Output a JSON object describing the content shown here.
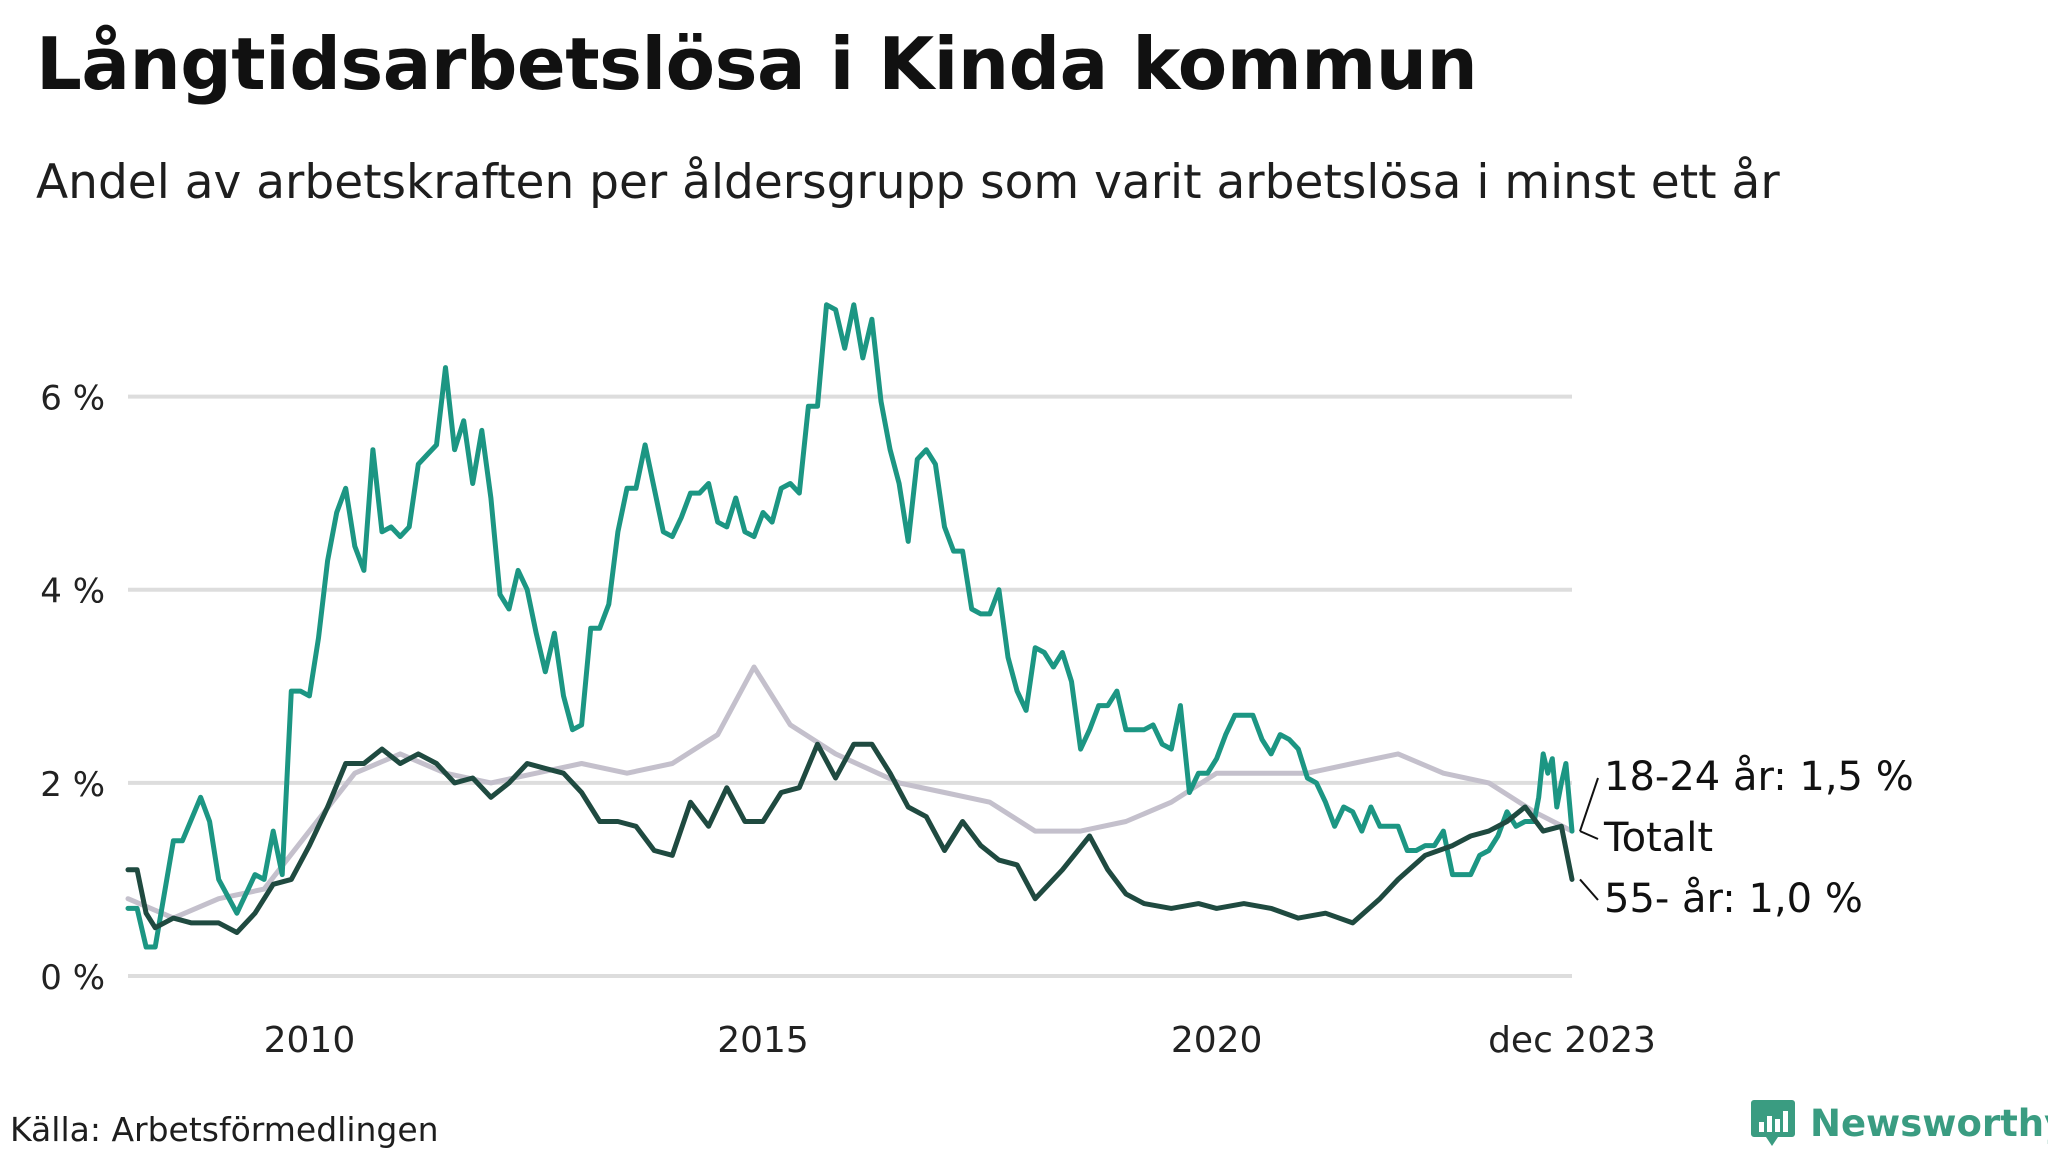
{
  "title": "Långtidsarbetslösa i Kinda kommun",
  "subtitle": "Andel av arbetskraften per åldersgrupp som varit arbetslösa i minst ett år",
  "source": "Källa: Arbetsförmedlingen",
  "brand": "Newsworthy",
  "colors": {
    "youth": "#1c9683",
    "total": "#c4c0cc",
    "senior": "#1f4a40",
    "grid": "#dddddd",
    "brand": "#3a9c81"
  },
  "chart_data": {
    "type": "line",
    "title": "Långtidsarbetslösa i Kinda kommun",
    "xlabel": "",
    "ylabel": "",
    "ylim": [
      0,
      7
    ],
    "xlim": [
      2008.0,
      2023.917
    ],
    "y_ticks": [
      {
        "value": 0,
        "label": "0 %"
      },
      {
        "value": 2,
        "label": "2 %"
      },
      {
        "value": 4,
        "label": "4 %"
      },
      {
        "value": 6,
        "label": "6 %"
      }
    ],
    "x_ticks": [
      {
        "value": 2010,
        "label": "2010"
      },
      {
        "value": 2015,
        "label": "2015"
      },
      {
        "value": 2020,
        "label": "2020"
      },
      {
        "value": 2023.917,
        "label": "dec 2023"
      }
    ],
    "grid": true,
    "series": [
      {
        "key": "total",
        "name": "Totalt",
        "label": "Totalt",
        "points": [
          [
            2008.0,
            0.8
          ],
          [
            2008.5,
            0.6
          ],
          [
            2009.0,
            0.8
          ],
          [
            2009.5,
            0.9
          ],
          [
            2010.0,
            1.5
          ],
          [
            2010.5,
            2.1
          ],
          [
            2011.0,
            2.3
          ],
          [
            2011.5,
            2.1
          ],
          [
            2012.0,
            2.0
          ],
          [
            2012.5,
            2.1
          ],
          [
            2013.0,
            2.2
          ],
          [
            2013.5,
            2.1
          ],
          [
            2014.0,
            2.2
          ],
          [
            2014.5,
            2.5
          ],
          [
            2014.9,
            3.2
          ],
          [
            2015.3,
            2.6
          ],
          [
            2015.8,
            2.3
          ],
          [
            2016.5,
            2.0
          ],
          [
            2017.0,
            1.9
          ],
          [
            2017.5,
            1.8
          ],
          [
            2018.0,
            1.5
          ],
          [
            2018.5,
            1.5
          ],
          [
            2019.0,
            1.6
          ],
          [
            2019.5,
            1.8
          ],
          [
            2020.0,
            2.1
          ],
          [
            2020.5,
            2.1
          ],
          [
            2021.0,
            2.1
          ],
          [
            2021.5,
            2.2
          ],
          [
            2022.0,
            2.3
          ],
          [
            2022.5,
            2.1
          ],
          [
            2023.0,
            2.0
          ],
          [
            2023.5,
            1.7
          ],
          [
            2023.917,
            1.5
          ]
        ]
      },
      {
        "key": "youth",
        "name": "18-24 år",
        "label": "18-24 år: 1,5 %",
        "points": [
          [
            2008.0,
            0.7
          ],
          [
            2008.1,
            0.7
          ],
          [
            2008.2,
            0.3
          ],
          [
            2008.3,
            0.3
          ],
          [
            2008.5,
            1.4
          ],
          [
            2008.6,
            1.4
          ],
          [
            2008.8,
            1.85
          ],
          [
            2008.9,
            1.6
          ],
          [
            2009.0,
            1.0
          ],
          [
            2009.2,
            0.65
          ],
          [
            2009.4,
            1.05
          ],
          [
            2009.5,
            1.0
          ],
          [
            2009.6,
            1.5
          ],
          [
            2009.7,
            1.05
          ],
          [
            2009.8,
            2.95
          ],
          [
            2009.9,
            2.95
          ],
          [
            2010.0,
            2.9
          ],
          [
            2010.1,
            3.5
          ],
          [
            2010.2,
            4.3
          ],
          [
            2010.3,
            4.8
          ],
          [
            2010.4,
            5.05
          ],
          [
            2010.5,
            4.45
          ],
          [
            2010.6,
            4.2
          ],
          [
            2010.7,
            5.45
          ],
          [
            2010.8,
            4.6
          ],
          [
            2010.9,
            4.65
          ],
          [
            2011.0,
            4.55
          ],
          [
            2011.1,
            4.65
          ],
          [
            2011.2,
            5.3
          ],
          [
            2011.3,
            5.4
          ],
          [
            2011.4,
            5.5
          ],
          [
            2011.5,
            6.3
          ],
          [
            2011.6,
            5.45
          ],
          [
            2011.7,
            5.75
          ],
          [
            2011.8,
            5.1
          ],
          [
            2011.9,
            5.65
          ],
          [
            2012.0,
            4.95
          ],
          [
            2012.1,
            3.95
          ],
          [
            2012.2,
            3.8
          ],
          [
            2012.3,
            4.2
          ],
          [
            2012.4,
            4.0
          ],
          [
            2012.5,
            3.55
          ],
          [
            2012.6,
            3.15
          ],
          [
            2012.7,
            3.55
          ],
          [
            2012.8,
            2.9
          ],
          [
            2012.9,
            2.55
          ],
          [
            2013.0,
            2.6
          ],
          [
            2013.1,
            3.6
          ],
          [
            2013.2,
            3.6
          ],
          [
            2013.3,
            3.85
          ],
          [
            2013.4,
            4.6
          ],
          [
            2013.5,
            5.05
          ],
          [
            2013.6,
            5.05
          ],
          [
            2013.7,
            5.5
          ],
          [
            2013.8,
            5.05
          ],
          [
            2013.9,
            4.6
          ],
          [
            2014.0,
            4.55
          ],
          [
            2014.1,
            4.75
          ],
          [
            2014.2,
            5.0
          ],
          [
            2014.3,
            5.0
          ],
          [
            2014.4,
            5.1
          ],
          [
            2014.5,
            4.7
          ],
          [
            2014.6,
            4.65
          ],
          [
            2014.7,
            4.95
          ],
          [
            2014.8,
            4.6
          ],
          [
            2014.9,
            4.55
          ],
          [
            2015.0,
            4.8
          ],
          [
            2015.1,
            4.7
          ],
          [
            2015.2,
            5.05
          ],
          [
            2015.3,
            5.1
          ],
          [
            2015.4,
            5.0
          ],
          [
            2015.5,
            5.9
          ],
          [
            2015.6,
            5.9
          ],
          [
            2015.7,
            6.95
          ],
          [
            2015.8,
            6.9
          ],
          [
            2015.9,
            6.5
          ],
          [
            2016.0,
            6.95
          ],
          [
            2016.1,
            6.4
          ],
          [
            2016.2,
            6.8
          ],
          [
            2016.3,
            5.95
          ],
          [
            2016.4,
            5.45
          ],
          [
            2016.5,
            5.1
          ],
          [
            2016.6,
            4.5
          ],
          [
            2016.7,
            5.35
          ],
          [
            2016.8,
            5.45
          ],
          [
            2016.9,
            5.3
          ],
          [
            2017.0,
            4.65
          ],
          [
            2017.1,
            4.4
          ],
          [
            2017.2,
            4.4
          ],
          [
            2017.3,
            3.8
          ],
          [
            2017.4,
            3.75
          ],
          [
            2017.5,
            3.75
          ],
          [
            2017.6,
            4.0
          ],
          [
            2017.7,
            3.3
          ],
          [
            2017.8,
            2.95
          ],
          [
            2017.9,
            2.75
          ],
          [
            2018.0,
            3.4
          ],
          [
            2018.1,
            3.35
          ],
          [
            2018.2,
            3.2
          ],
          [
            2018.3,
            3.35
          ],
          [
            2018.4,
            3.05
          ],
          [
            2018.5,
            2.35
          ],
          [
            2018.6,
            2.55
          ],
          [
            2018.7,
            2.8
          ],
          [
            2018.8,
            2.8
          ],
          [
            2018.9,
            2.95
          ],
          [
            2019.0,
            2.55
          ],
          [
            2019.2,
            2.55
          ],
          [
            2019.3,
            2.6
          ],
          [
            2019.4,
            2.4
          ],
          [
            2019.5,
            2.35
          ],
          [
            2019.6,
            2.8
          ],
          [
            2019.7,
            1.9
          ],
          [
            2019.8,
            2.1
          ],
          [
            2019.9,
            2.1
          ],
          [
            2020.0,
            2.25
          ],
          [
            2020.1,
            2.5
          ],
          [
            2020.2,
            2.7
          ],
          [
            2020.4,
            2.7
          ],
          [
            2020.5,
            2.45
          ],
          [
            2020.6,
            2.3
          ],
          [
            2020.7,
            2.5
          ],
          [
            2020.8,
            2.45
          ],
          [
            2020.9,
            2.35
          ],
          [
            2021.0,
            2.05
          ],
          [
            2021.1,
            2.0
          ],
          [
            2021.2,
            1.8
          ],
          [
            2021.3,
            1.55
          ],
          [
            2021.4,
            1.75
          ],
          [
            2021.5,
            1.7
          ],
          [
            2021.6,
            1.5
          ],
          [
            2021.7,
            1.75
          ],
          [
            2021.8,
            1.55
          ],
          [
            2021.9,
            1.55
          ],
          [
            2022.0,
            1.55
          ],
          [
            2022.1,
            1.3
          ],
          [
            2022.2,
            1.3
          ],
          [
            2022.3,
            1.35
          ],
          [
            2022.4,
            1.35
          ],
          [
            2022.5,
            1.5
          ],
          [
            2022.6,
            1.05
          ],
          [
            2022.8,
            1.05
          ],
          [
            2022.9,
            1.25
          ],
          [
            2023.0,
            1.3
          ],
          [
            2023.1,
            1.45
          ],
          [
            2023.2,
            1.7
          ],
          [
            2023.3,
            1.55
          ],
          [
            2023.4,
            1.6
          ],
          [
            2023.5,
            1.6
          ],
          [
            2023.55,
            1.85
          ],
          [
            2023.6,
            2.3
          ],
          [
            2023.65,
            2.1
          ],
          [
            2023.7,
            2.25
          ],
          [
            2023.75,
            1.75
          ],
          [
            2023.8,
            2.0
          ],
          [
            2023.85,
            2.2
          ],
          [
            2023.917,
            1.5
          ]
        ]
      },
      {
        "key": "senior",
        "name": "55- år",
        "label": "55- år: 1,0 %",
        "points": [
          [
            2008.0,
            1.1
          ],
          [
            2008.1,
            1.1
          ],
          [
            2008.2,
            0.65
          ],
          [
            2008.3,
            0.5
          ],
          [
            2008.5,
            0.6
          ],
          [
            2008.7,
            0.55
          ],
          [
            2009.0,
            0.55
          ],
          [
            2009.2,
            0.45
          ],
          [
            2009.4,
            0.65
          ],
          [
            2009.6,
            0.95
          ],
          [
            2009.8,
            1.0
          ],
          [
            2010.0,
            1.35
          ],
          [
            2010.2,
            1.75
          ],
          [
            2010.4,
            2.2
          ],
          [
            2010.6,
            2.2
          ],
          [
            2010.8,
            2.35
          ],
          [
            2011.0,
            2.2
          ],
          [
            2011.2,
            2.3
          ],
          [
            2011.4,
            2.2
          ],
          [
            2011.6,
            2.0
          ],
          [
            2011.8,
            2.05
          ],
          [
            2012.0,
            1.85
          ],
          [
            2012.2,
            2.0
          ],
          [
            2012.4,
            2.2
          ],
          [
            2012.6,
            2.15
          ],
          [
            2012.8,
            2.1
          ],
          [
            2013.0,
            1.9
          ],
          [
            2013.2,
            1.6
          ],
          [
            2013.4,
            1.6
          ],
          [
            2013.6,
            1.55
          ],
          [
            2013.8,
            1.3
          ],
          [
            2014.0,
            1.25
          ],
          [
            2014.2,
            1.8
          ],
          [
            2014.4,
            1.55
          ],
          [
            2014.6,
            1.95
          ],
          [
            2014.8,
            1.6
          ],
          [
            2015.0,
            1.6
          ],
          [
            2015.2,
            1.9
          ],
          [
            2015.4,
            1.95
          ],
          [
            2015.6,
            2.4
          ],
          [
            2015.8,
            2.05
          ],
          [
            2016.0,
            2.4
          ],
          [
            2016.2,
            2.4
          ],
          [
            2016.4,
            2.1
          ],
          [
            2016.6,
            1.75
          ],
          [
            2016.8,
            1.65
          ],
          [
            2017.0,
            1.3
          ],
          [
            2017.2,
            1.6
          ],
          [
            2017.4,
            1.35
          ],
          [
            2017.6,
            1.2
          ],
          [
            2017.8,
            1.15
          ],
          [
            2018.0,
            0.8
          ],
          [
            2018.3,
            1.1
          ],
          [
            2018.6,
            1.45
          ],
          [
            2018.8,
            1.1
          ],
          [
            2019.0,
            0.85
          ],
          [
            2019.2,
            0.75
          ],
          [
            2019.5,
            0.7
          ],
          [
            2019.8,
            0.75
          ],
          [
            2020.0,
            0.7
          ],
          [
            2020.3,
            0.75
          ],
          [
            2020.6,
            0.7
          ],
          [
            2020.9,
            0.6
          ],
          [
            2021.2,
            0.65
          ],
          [
            2021.5,
            0.55
          ],
          [
            2021.8,
            0.8
          ],
          [
            2022.0,
            1.0
          ],
          [
            2022.3,
            1.25
          ],
          [
            2022.6,
            1.35
          ],
          [
            2022.8,
            1.45
          ],
          [
            2023.0,
            1.5
          ],
          [
            2023.2,
            1.6
          ],
          [
            2023.4,
            1.75
          ],
          [
            2023.6,
            1.5
          ],
          [
            2023.8,
            1.55
          ],
          [
            2023.917,
            1.0
          ]
        ]
      }
    ]
  }
}
